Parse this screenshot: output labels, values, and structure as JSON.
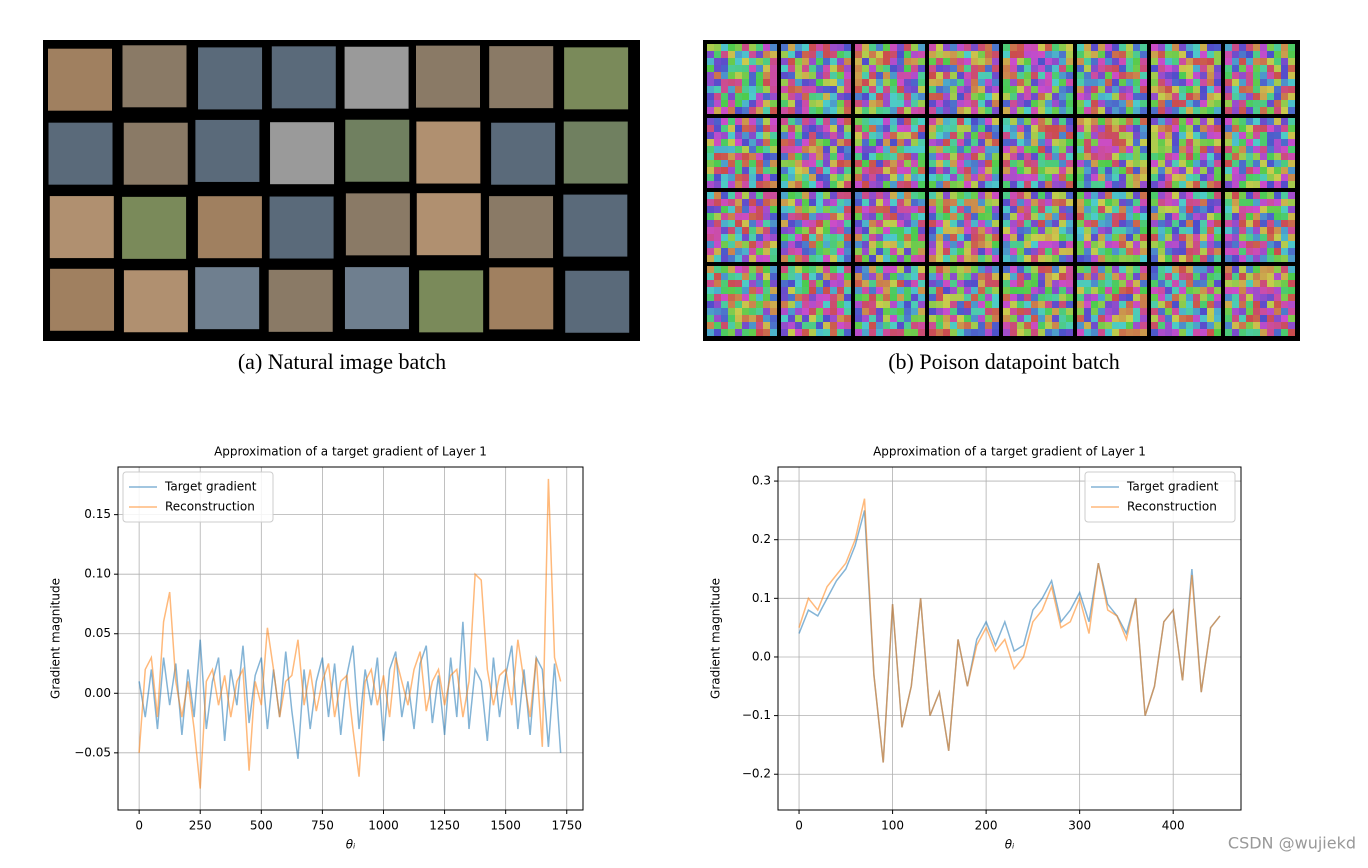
{
  "figure": {
    "captions": [
      "(a) Natural image batch",
      "(b) Poison datapoint batch"
    ],
    "watermark": "CSDN @wujiekd"
  },
  "chart_data": [
    {
      "type": "line",
      "title": "Approximation of a target gradient of Layer 1",
      "xlabel": "θᵢ",
      "ylabel": "Gradient magnitude",
      "grid": true,
      "legend": "upper left",
      "xlim": [
        -86.5,
        1816.5
      ],
      "xticks": [
        0,
        250,
        500,
        750,
        1000,
        1250,
        1500,
        1750
      ],
      "ylim": [
        -0.098,
        0.19
      ],
      "yticks": [
        {
          "value": -0.05,
          "label": "−0.05"
        },
        {
          "value": 0,
          "label": "0.00"
        },
        {
          "value": 0.05,
          "label": "0.05"
        },
        {
          "value": 0.1,
          "label": "0.10"
        },
        {
          "value": 0.15,
          "label": "0.15"
        }
      ],
      "x": [
        0,
        25,
        50,
        75,
        100,
        125,
        150,
        175,
        200,
        225,
        250,
        275,
        300,
        325,
        350,
        375,
        400,
        425,
        450,
        475,
        500,
        525,
        550,
        575,
        600,
        625,
        650,
        675,
        700,
        725,
        750,
        775,
        800,
        825,
        850,
        875,
        900,
        925,
        950,
        975,
        1000,
        1025,
        1050,
        1075,
        1100,
        1125,
        1150,
        1175,
        1200,
        1225,
        1250,
        1275,
        1300,
        1325,
        1350,
        1375,
        1400,
        1425,
        1450,
        1475,
        1500,
        1525,
        1550,
        1575,
        1600,
        1625,
        1650,
        1675,
        1700,
        1725
      ],
      "series": [
        {
          "name": "Target gradient",
          "color": "#1f77b4",
          "values": [
            0.01,
            -0.02,
            0.02,
            -0.03,
            0.03,
            -0.01,
            0.025,
            -0.035,
            0.02,
            -0.02,
            0.045,
            -0.03,
            0.01,
            0.03,
            -0.04,
            0.02,
            -0.01,
            0.04,
            -0.025,
            0.015,
            0.03,
            -0.03,
            0.02,
            -0.02,
            0.035,
            -0.015,
            -0.055,
            0.02,
            -0.03,
            0.01,
            0.03,
            -0.02,
            0.025,
            -0.035,
            0.015,
            0.04,
            -0.03,
            0.02,
            -0.01,
            0.03,
            -0.04,
            0.02,
            0.035,
            -0.02,
            0.01,
            -0.03,
            0.025,
            0.04,
            -0.025,
            0.015,
            -0.035,
            0.03,
            -0.02,
            0.06,
            -0.03,
            0.02,
            0.01,
            -0.04,
            0.03,
            -0.02,
            0.015,
            0.04,
            -0.03,
            0.02,
            -0.035,
            0.03,
            0.02,
            -0.045,
            0.025,
            -0.05
          ]
        },
        {
          "name": "Reconstruction",
          "color": "#ff7f0e",
          "values": [
            -0.05,
            0.02,
            0.03,
            -0.02,
            0.06,
            0.085,
            0.01,
            -0.02,
            0.01,
            -0.03,
            -0.08,
            0.01,
            0.02,
            -0.01,
            0.015,
            -0.02,
            0.01,
            0.02,
            -0.065,
            0.01,
            -0.01,
            0.055,
            0.02,
            -0.02,
            0.01,
            0.015,
            0.045,
            -0.01,
            0.02,
            -0.015,
            0.01,
            0.025,
            -0.02,
            0.01,
            0.015,
            -0.03,
            -0.07,
            0.01,
            0.02,
            -0.01,
            0.015,
            -0.02,
            0.03,
            0.01,
            -0.01,
            0.02,
            0.035,
            -0.015,
            0.01,
            0.02,
            -0.01,
            0.015,
            0.02,
            -0.02,
            0.01,
            0.1,
            0.095,
            0.02,
            -0.01,
            0.015,
            0.02,
            -0.01,
            0.045,
            0.01,
            -0.02,
            0.03,
            -0.045,
            0.18,
            0.03,
            0.01
          ]
        }
      ]
    },
    {
      "type": "line",
      "title": "Approximation of a target gradient of Layer 1",
      "xlabel": "θᵢ",
      "ylabel": "Gradient magnitude",
      "grid": true,
      "legend": "upper right",
      "xlim": [
        -22.5,
        472.5
      ],
      "xticks": [
        0,
        100,
        200,
        300,
        400
      ],
      "ylim": [
        -0.261,
        0.324
      ],
      "yticks": [
        {
          "value": -0.2,
          "label": "−0.2"
        },
        {
          "value": -0.1,
          "label": "−0.1"
        },
        {
          "value": 0,
          "label": "0.0"
        },
        {
          "value": 0.1,
          "label": "0.1"
        },
        {
          "value": 0.2,
          "label": "0.2"
        },
        {
          "value": 0.3,
          "label": "0.3"
        }
      ],
      "x": [
        0,
        10,
        20,
        30,
        40,
        50,
        60,
        70,
        80,
        90,
        100,
        110,
        120,
        130,
        140,
        150,
        160,
        170,
        180,
        190,
        200,
        210,
        220,
        230,
        240,
        250,
        260,
        270,
        280,
        290,
        300,
        310,
        320,
        330,
        340,
        350,
        360,
        370,
        380,
        390,
        400,
        410,
        420,
        430,
        440,
        450
      ],
      "series": [
        {
          "name": "Target gradient",
          "color": "#1f77b4",
          "values": [
            0.04,
            0.08,
            0.07,
            0.1,
            0.13,
            0.15,
            0.19,
            0.25,
            -0.03,
            -0.18,
            0.09,
            -0.12,
            -0.05,
            0.1,
            -0.1,
            -0.06,
            -0.16,
            0.03,
            -0.05,
            0.03,
            0.06,
            0.02,
            0.06,
            0.01,
            0.02,
            0.08,
            0.1,
            0.13,
            0.06,
            0.08,
            0.11,
            0.06,
            0.16,
            0.09,
            0.07,
            0.04,
            0.1,
            -0.1,
            -0.05,
            0.06,
            0.08,
            -0.04,
            0.15,
            -0.06,
            0.05,
            0.07
          ]
        },
        {
          "name": "Reconstruction",
          "color": "#ff7f0e",
          "values": [
            0.05,
            0.1,
            0.08,
            0.12,
            0.14,
            0.16,
            0.2,
            0.27,
            -0.03,
            -0.18,
            0.09,
            -0.12,
            -0.05,
            0.1,
            -0.1,
            -0.06,
            -0.16,
            0.03,
            -0.05,
            0.02,
            0.05,
            0.01,
            0.03,
            -0.02,
            0.0,
            0.06,
            0.08,
            0.12,
            0.05,
            0.06,
            0.1,
            0.04,
            0.16,
            0.08,
            0.07,
            0.03,
            0.1,
            -0.1,
            -0.05,
            0.06,
            0.08,
            -0.04,
            0.14,
            -0.06,
            0.05,
            0.07
          ]
        }
      ]
    }
  ]
}
